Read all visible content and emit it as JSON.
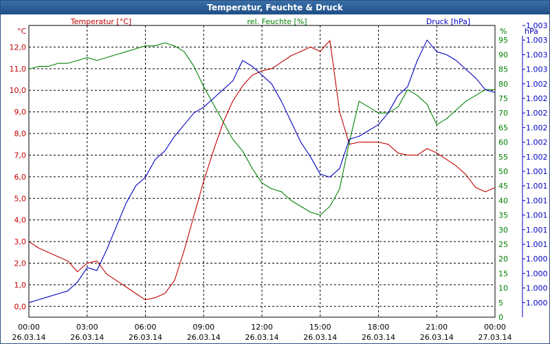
{
  "colors": {
    "temperature": "#c00000",
    "humidity": "#008000",
    "pressure": "#0000c0",
    "title_bg": "#2a5f98",
    "grid": "#000000"
  },
  "chart_data": {
    "type": "line",
    "title": "Temperatur, Feuchte & Druck",
    "x_ticks": [
      {
        "time": "00:00",
        "date": "26.03.14"
      },
      {
        "time": "03:00",
        "date": "26.03.14"
      },
      {
        "time": "06:00",
        "date": "26.03.14"
      },
      {
        "time": "09:00",
        "date": "26.03.14"
      },
      {
        "time": "12:00",
        "date": "26.03.14"
      },
      {
        "time": "15:00",
        "date": "26.03.14"
      },
      {
        "time": "18:00",
        "date": "26.03.14"
      },
      {
        "time": "21:00",
        "date": "26.03.14"
      },
      {
        "time": "00:00",
        "date": "27.03.14"
      }
    ],
    "xlim_hours": [
      0,
      24
    ],
    "axes": {
      "temperature": {
        "unit": "°C",
        "label": "Temperatur [°C]",
        "ylim": [
          -0.5,
          13
        ],
        "ticks": [
          "0,0",
          "1,0",
          "2,0",
          "3,0",
          "4,0",
          "5,0",
          "6,0",
          "7,0",
          "8,0",
          "9,0",
          "10,0",
          "11,0",
          "12,0"
        ],
        "tick_values": [
          0,
          1,
          2,
          3,
          4,
          5,
          6,
          7,
          8,
          9,
          10,
          11,
          12
        ]
      },
      "humidity": {
        "unit": "%",
        "label": "rel. Feuchte [%]",
        "ylim": [
          0,
          100
        ],
        "ticks": [
          "0",
          "5",
          "10",
          "15",
          "20",
          "25",
          "30",
          "35",
          "40",
          "45",
          "50",
          "55",
          "60",
          "65",
          "70",
          "75",
          "80",
          "85",
          "90",
          "95"
        ],
        "tick_values": [
          0,
          5,
          10,
          15,
          20,
          25,
          30,
          35,
          40,
          45,
          50,
          55,
          60,
          65,
          70,
          75,
          80,
          85,
          90,
          95
        ]
      },
      "pressure": {
        "unit": "hPa",
        "label": "Druck [hPa]",
        "ylim": [
          0,
          100
        ],
        "ticks": [
          "1.000",
          "1.000",
          "1.000",
          "1.000",
          "1.001",
          "1.001",
          "1.001",
          "1.001",
          "1.001",
          "1.001",
          "1.002",
          "1.002",
          "1.002",
          "1.002",
          "1.002",
          "1.002",
          "1.003",
          "1.003",
          "1.003",
          "1.003"
        ],
        "tick_values": [
          5,
          10,
          15,
          20,
          25,
          30,
          35,
          40,
          45,
          50,
          55,
          60,
          65,
          70,
          75,
          80,
          85,
          90,
          95,
          100
        ]
      }
    },
    "grid": true,
    "series": [
      {
        "name": "Temperatur [°C]",
        "axis": "temperature",
        "x": [
          0,
          0.5,
          1,
          1.5,
          2,
          2.5,
          3,
          3.5,
          4,
          4.5,
          5,
          5.5,
          6,
          6.5,
          7,
          7.5,
          8,
          8.5,
          9,
          9.5,
          10,
          10.5,
          11,
          11.5,
          12,
          12.5,
          13,
          13.5,
          14,
          14.5,
          15,
          15.5,
          16,
          16.5,
          17,
          17.5,
          18,
          18.5,
          19,
          19.5,
          20,
          20.5,
          21,
          21.5,
          22,
          22.5,
          23,
          23.5,
          24
        ],
        "y": [
          3.0,
          2.7,
          2.5,
          2.3,
          2.1,
          1.6,
          2.0,
          2.1,
          1.5,
          1.2,
          0.9,
          0.6,
          0.3,
          0.4,
          0.6,
          1.2,
          2.6,
          4.2,
          5.8,
          7.2,
          8.5,
          9.5,
          10.2,
          10.7,
          10.9,
          11.0,
          11.3,
          11.6,
          11.8,
          12.0,
          11.8,
          12.3,
          9.0,
          7.5,
          7.6,
          7.6,
          7.6,
          7.5,
          7.1,
          7.0,
          7.0,
          7.3,
          7.1,
          6.8,
          6.5,
          6.1,
          5.5,
          5.3,
          5.5
        ]
      },
      {
        "name": "rel. Feuchte [%]",
        "axis": "humidity",
        "x": [
          0,
          0.5,
          1,
          1.5,
          2,
          2.5,
          3,
          3.5,
          4,
          4.5,
          5,
          5.5,
          6,
          6.5,
          7,
          7.5,
          8,
          8.5,
          9,
          9.5,
          10,
          10.5,
          11,
          11.5,
          12,
          12.5,
          13,
          13.5,
          14,
          14.5,
          15,
          15.5,
          16,
          16.5,
          17,
          17.5,
          18,
          18.5,
          19,
          19.5,
          20,
          20.5,
          21,
          21.5,
          22,
          22.5,
          23,
          23.5,
          24
        ],
        "y": [
          85,
          86,
          86,
          87,
          87,
          88,
          89,
          88,
          89,
          90,
          91,
          92,
          93,
          93,
          94,
          93,
          91,
          86,
          79,
          73,
          67,
          61,
          57,
          51,
          46,
          44,
          43,
          40,
          38,
          36,
          35,
          38,
          44,
          60,
          74,
          72,
          70,
          70,
          72,
          78,
          76,
          73,
          66,
          68,
          71,
          74,
          76,
          78,
          78
        ]
      },
      {
        "name": "Druck [hPa]",
        "axis": "pressure",
        "x": [
          0,
          0.5,
          1,
          1.5,
          2,
          2.5,
          3,
          3.5,
          4,
          4.5,
          5,
          5.5,
          6,
          6.5,
          7,
          7.5,
          8,
          8.5,
          9,
          9.5,
          10,
          10.5,
          11,
          11.5,
          12,
          12.5,
          13,
          13.5,
          14,
          14.5,
          15,
          15.5,
          16,
          16.5,
          17,
          17.5,
          18,
          18.5,
          19,
          19.5,
          20,
          20.5,
          21,
          21.5,
          22,
          22.5,
          23,
          23.5,
          24
        ],
        "y": [
          5,
          6,
          7,
          8,
          9,
          12,
          17,
          16,
          23,
          31,
          39,
          45,
          48,
          54,
          57,
          62,
          66,
          70,
          72,
          75,
          78,
          81,
          88,
          86,
          83,
          80,
          74,
          67,
          60,
          55,
          49,
          48,
          51,
          61,
          62,
          64,
          66,
          70,
          76,
          79,
          88,
          95,
          91,
          90,
          88,
          85,
          82,
          78,
          77
        ]
      }
    ]
  }
}
